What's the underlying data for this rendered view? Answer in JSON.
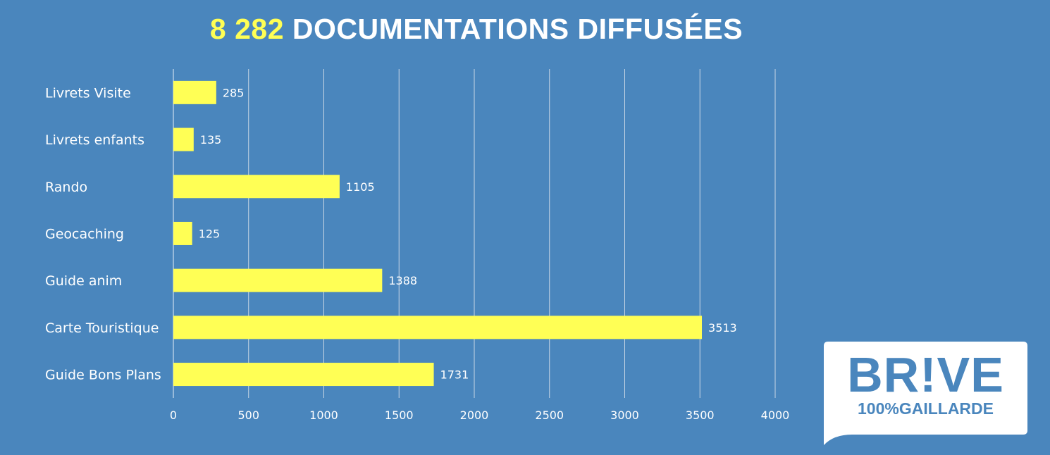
{
  "title": {
    "highlight": "8 282",
    "text": "DOCUMENTATIONS DIFFUSÉES"
  },
  "colors": {
    "background": "#4a86bd",
    "bar": "#ffff55",
    "title_highlight": "#ffff55",
    "text": "#ffffff",
    "grid": "#c8d6e5"
  },
  "chart_data": {
    "type": "bar",
    "orientation": "horizontal",
    "categories": [
      "Livrets Visite",
      "Livrets enfants",
      "Rando",
      "Geocaching",
      "Guide anim",
      "Carte Touristique",
      "Guide Bons Plans"
    ],
    "values": [
      285,
      135,
      1105,
      125,
      1388,
      3513,
      1731
    ],
    "xlim": [
      0,
      4000
    ],
    "xticks": [
      0,
      500,
      1000,
      1500,
      2000,
      2500,
      3000,
      3500,
      4000
    ],
    "grid": true,
    "data_labels": true
  },
  "logo": {
    "line1": "BR!VE",
    "line2": "100%GAILLARDE"
  }
}
